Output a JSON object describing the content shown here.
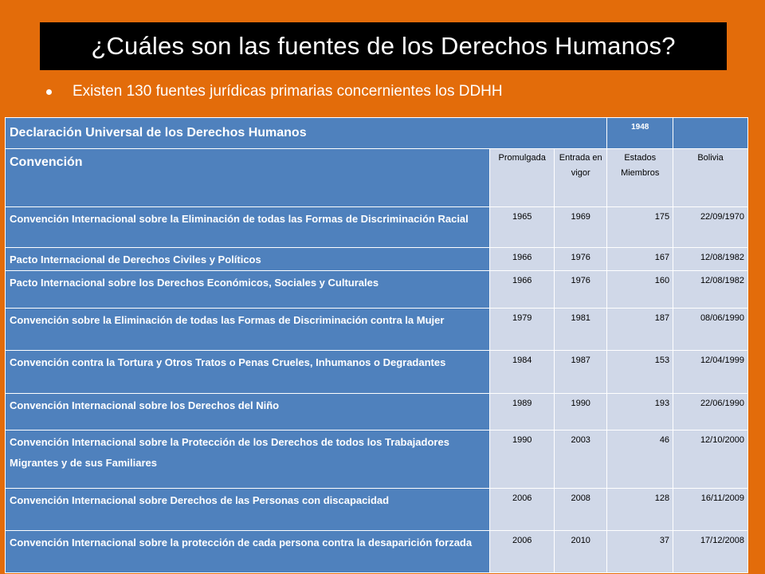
{
  "title": "¿Cuáles son las fuentes de los Derechos Humanos?",
  "bullet": "Existen 130 fuentes jurídicas primarias concernientes los DDHH",
  "table": {
    "declaration": {
      "label": "Declaración Universal de los Derechos Humanos",
      "year": "1948"
    },
    "header": {
      "convention": "Convención",
      "promulgada": "Promulgada",
      "entrada": "Entrada en vigor",
      "estados": "Estados Miembros",
      "bolivia": "Bolivia"
    },
    "rows": [
      {
        "name": "Convención Internacional sobre la Eliminación de todas las Formas de Discriminación Racial",
        "promulgada": "1965",
        "entrada": "1969",
        "estados": "175",
        "bolivia": "22/09/1970"
      },
      {
        "name": "Pacto Internacional de Derechos Civiles y Políticos",
        "promulgada": "1966",
        "entrada": "1976",
        "estados": "167",
        "bolivia": "12/08/1982"
      },
      {
        "name": "Pacto Internacional sobre los Derechos Económicos, Sociales y Culturales",
        "promulgada": "1966",
        "entrada": "1976",
        "estados": "160",
        "bolivia": "12/08/1982"
      },
      {
        "name": "Convención sobre la Eliminación de todas las Formas de Discriminación contra la Mujer",
        "promulgada": "1979",
        "entrada": "1981",
        "estados": "187",
        "bolivia": "08/06/1990"
      },
      {
        "name": "Convención contra la Tortura y Otros Tratos o Penas Crueles, Inhumanos o Degradantes",
        "promulgada": "1984",
        "entrada": "1987",
        "estados": "153",
        "bolivia": "12/04/1999"
      },
      {
        "name": "Convención Internacional sobre los Derechos del Niño",
        "promulgada": "1989",
        "entrada": "1990",
        "estados": "193",
        "bolivia": "22/06/1990"
      },
      {
        "name": "Convención Internacional sobre la Protección de los Derechos de todos los Trabajadores Migrantes y de sus Familiares",
        "promulgada": "1990",
        "entrada": "2003",
        "estados": "46",
        "bolivia": "12/10/2000"
      },
      {
        "name": "Convención Internacional sobre Derechos de las Personas con discapacidad",
        "promulgada": "2006",
        "entrada": "2008",
        "estados": "128",
        "bolivia": "16/11/2009"
      },
      {
        "name": "Convención Internacional sobre la protección de cada persona contra la desaparición forzada",
        "promulgada": "2006",
        "entrada": "2010",
        "estados": "37",
        "bolivia": "17/12/2008"
      }
    ]
  }
}
